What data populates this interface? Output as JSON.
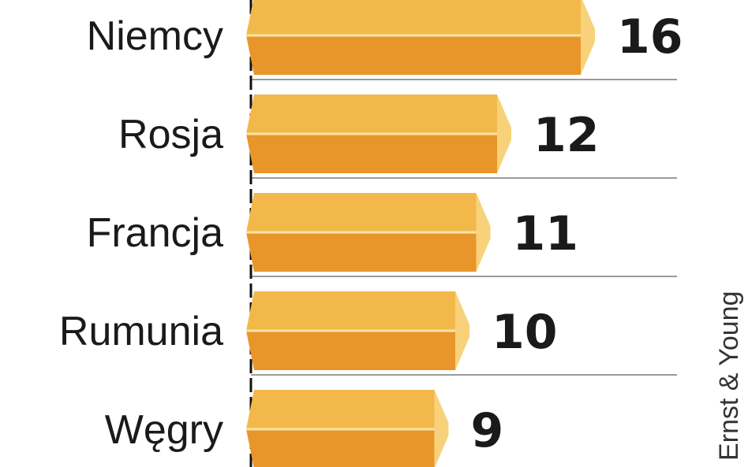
{
  "chart_data": {
    "type": "bar",
    "orientation": "horizontal",
    "categories": [
      "Niemcy",
      "Rosja",
      "Francja",
      "Rumunia",
      "Węgry"
    ],
    "values": [
      16,
      12,
      11,
      10,
      9
    ],
    "title": "",
    "xlabel": "",
    "ylabel": "",
    "grid": true,
    "source": "Ernst & Young"
  },
  "colors": {
    "bar_top": "#f2b94a",
    "bar_bottom": "#e8962a",
    "bar_end": "#f7d27a",
    "grid": "#9a9a9a",
    "axis": "#111111",
    "text": "#1a1a1a"
  }
}
